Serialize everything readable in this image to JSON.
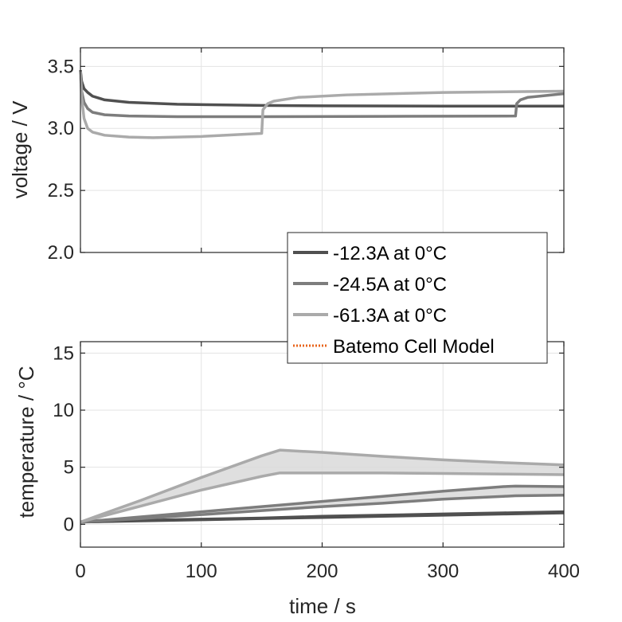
{
  "colors": {
    "series_dark": "#505050",
    "series_mid": "#7d7d7d",
    "series_light": "#aaaaaa",
    "model": "#e8641b",
    "band_fill": "#d9d9d9",
    "axis": "#262626",
    "grid": "#e3e3e3"
  },
  "chart_data": [
    {
      "type": "line",
      "panel": "voltage",
      "xlabel": "",
      "ylabel": "voltage / V",
      "xlim": [
        0,
        400
      ],
      "ylim": [
        2.0,
        3.65
      ],
      "yticks": [
        2.0,
        2.5,
        3.0,
        3.5
      ],
      "ytick_labels": [
        "2.0",
        "2.5",
        "3.0",
        "3.5"
      ],
      "xticks": [
        0,
        100,
        200,
        300,
        400
      ],
      "grid": true,
      "series": [
        {
          "name": "-12.3A at 0°C",
          "color": "#505050",
          "x": [
            0,
            1,
            3,
            6,
            10,
            20,
            40,
            80,
            150,
            200,
            300,
            400
          ],
          "y": [
            3.47,
            3.38,
            3.32,
            3.29,
            3.26,
            3.23,
            3.21,
            3.195,
            3.185,
            3.182,
            3.18,
            3.18
          ]
        },
        {
          "name": "-24.5A at 0°C",
          "color": "#7d7d7d",
          "x": [
            0,
            1,
            3,
            6,
            10,
            20,
            40,
            80,
            150,
            250,
            360,
            361,
            364,
            370,
            380,
            400
          ],
          "y": [
            3.46,
            3.3,
            3.21,
            3.16,
            3.13,
            3.11,
            3.1,
            3.095,
            3.095,
            3.097,
            3.1,
            3.2,
            3.23,
            3.25,
            3.26,
            3.28
          ]
        },
        {
          "name": "-61.3A at 0°C",
          "color": "#aaaaaa",
          "x": [
            0,
            1,
            3,
            6,
            10,
            20,
            40,
            60,
            100,
            150,
            151,
            155,
            160,
            180,
            220,
            300,
            400
          ],
          "y": [
            3.46,
            3.25,
            3.08,
            3.0,
            2.97,
            2.945,
            2.93,
            2.925,
            2.935,
            2.96,
            3.15,
            3.2,
            3.22,
            3.25,
            3.27,
            3.29,
            3.3
          ]
        }
      ]
    },
    {
      "type": "area",
      "panel": "temperature",
      "xlabel": "time / s",
      "ylabel": "temperature / °C",
      "xlim": [
        0,
        400
      ],
      "ylim": [
        -2,
        16
      ],
      "yticks": [
        0,
        5,
        10,
        15
      ],
      "ytick_labels": [
        "0",
        "5",
        "10",
        "15"
      ],
      "xticks": [
        0,
        100,
        200,
        300,
        400
      ],
      "xtick_labels": [
        "0",
        "100",
        "200",
        "300",
        "400"
      ],
      "grid": true,
      "series": [
        {
          "name": "-12.3A at 0°C",
          "color": "#505050",
          "x": [
            0,
            50,
            100,
            150,
            200,
            250,
            300,
            350,
            400
          ],
          "upper": [
            0.2,
            0.35,
            0.45,
            0.55,
            0.7,
            0.8,
            0.9,
            1.0,
            1.1
          ],
          "lower": [
            0.2,
            0.3,
            0.4,
            0.5,
            0.6,
            0.7,
            0.8,
            0.9,
            1.0
          ]
        },
        {
          "name": "-24.5A at 0°C",
          "color": "#7d7d7d",
          "x": [
            0,
            50,
            100,
            150,
            200,
            250,
            300,
            350,
            360,
            400
          ],
          "upper": [
            0.2,
            0.65,
            1.1,
            1.55,
            2.0,
            2.45,
            2.9,
            3.3,
            3.35,
            3.3
          ],
          "lower": [
            0.2,
            0.5,
            0.85,
            1.2,
            1.55,
            1.85,
            2.2,
            2.45,
            2.5,
            2.55
          ]
        },
        {
          "name": "-61.3A at 0°C",
          "color": "#aaaaaa",
          "x": [
            0,
            50,
            100,
            150,
            165,
            200,
            250,
            300,
            350,
            400
          ],
          "upper": [
            0.2,
            2.1,
            4.1,
            6.0,
            6.5,
            6.3,
            5.95,
            5.65,
            5.4,
            5.2
          ],
          "lower": [
            0.2,
            1.6,
            3.0,
            4.2,
            4.5,
            4.5,
            4.5,
            4.45,
            4.4,
            4.35
          ]
        }
      ]
    }
  ],
  "legend": {
    "placement": "between panels, right",
    "entries": [
      {
        "label": "-12.3A at 0°C",
        "color": "#505050",
        "style": "solid"
      },
      {
        "label": "-24.5A at 0°C",
        "color": "#7d7d7d",
        "style": "solid"
      },
      {
        "label": "-61.3A at 0°C",
        "color": "#aaaaaa",
        "style": "solid"
      },
      {
        "label": "Batemo Cell Model",
        "color": "#e8641b",
        "style": "dotted"
      }
    ]
  }
}
